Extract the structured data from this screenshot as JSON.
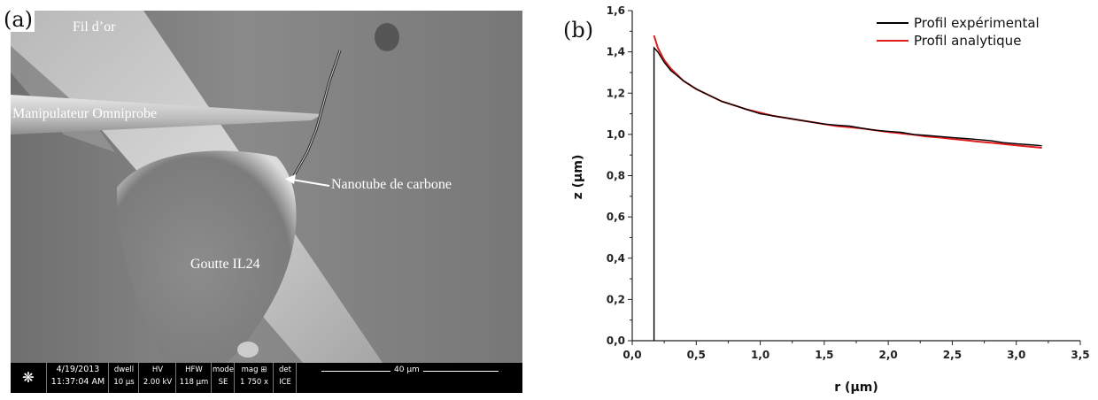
{
  "panel_a": {
    "letter": "(a)",
    "labels": {
      "gold_wire": "Fil d’or",
      "manipulator": "Manipulateur Omniprobe",
      "nanotube": "Nanotube de carbone",
      "drop": "Goutte IL24"
    },
    "info_bar": {
      "date": "4/19/2013",
      "time": "11:37:04 AM",
      "dwell_label": "dwell",
      "dwell_value": "10 µs",
      "hv_label": "HV",
      "hv_value": "2.00 kV",
      "hfw_label": "HFW",
      "hfw_value": "118 µm",
      "mode_label": "mode",
      "mode_value": "SE",
      "mag_label": "mag ⊞",
      "mag_value": "1 750 x",
      "det_label": "det",
      "det_value": "ICE",
      "scale_label": "40 µm"
    }
  },
  "panel_b": {
    "letter": "(b)"
  },
  "chart_data": {
    "type": "line",
    "xlabel": "r (µm)",
    "ylabel": "z (µm)",
    "xlim": [
      0.0,
      3.5
    ],
    "ylim": [
      0.0,
      1.6
    ],
    "x_ticks": [
      "0,0",
      "0,5",
      "1,0",
      "1,5",
      "2,0",
      "2,5",
      "3,0",
      "3,5"
    ],
    "y_ticks": [
      "0,0",
      "0,2",
      "0,4",
      "0,6",
      "0,8",
      "1,0",
      "1,2",
      "1,4",
      "1,6"
    ],
    "legend_position": "top-right",
    "grid": false,
    "series": [
      {
        "name": "Profil expérimental",
        "color": "#000000",
        "x": [
          0.17,
          0.17,
          0.17,
          0.2,
          0.25,
          0.3,
          0.4,
          0.5,
          0.6,
          0.7,
          0.8,
          0.9,
          1.0,
          1.1,
          1.2,
          1.3,
          1.4,
          1.5,
          1.6,
          1.7,
          1.8,
          1.9,
          2.0,
          2.1,
          2.2,
          2.3,
          2.4,
          2.5,
          2.6,
          2.7,
          2.8,
          2.9,
          3.0,
          3.1,
          3.2
        ],
        "y": [
          0.0,
          1.0,
          1.42,
          1.4,
          1.35,
          1.31,
          1.26,
          1.22,
          1.19,
          1.16,
          1.14,
          1.12,
          1.1,
          1.09,
          1.08,
          1.07,
          1.06,
          1.05,
          1.045,
          1.04,
          1.03,
          1.02,
          1.015,
          1.01,
          1.0,
          0.995,
          0.99,
          0.985,
          0.98,
          0.975,
          0.97,
          0.96,
          0.955,
          0.95,
          0.945
        ]
      },
      {
        "name": "Profil analytique",
        "color": "#e01c1c",
        "x": [
          0.17,
          0.2,
          0.25,
          0.3,
          0.4,
          0.5,
          0.6,
          0.7,
          0.8,
          0.9,
          1.0,
          1.1,
          1.2,
          1.3,
          1.4,
          1.5,
          1.6,
          1.7,
          1.8,
          1.9,
          2.0,
          2.1,
          2.2,
          2.3,
          2.4,
          2.5,
          2.6,
          2.7,
          2.8,
          2.9,
          3.0,
          3.1,
          3.2
        ],
        "y": [
          1.48,
          1.42,
          1.36,
          1.32,
          1.26,
          1.22,
          1.19,
          1.16,
          1.14,
          1.12,
          1.105,
          1.09,
          1.08,
          1.07,
          1.06,
          1.05,
          1.04,
          1.035,
          1.028,
          1.02,
          1.012,
          1.005,
          0.998,
          0.99,
          0.985,
          0.978,
          0.972,
          0.965,
          0.96,
          0.953,
          0.947,
          0.941,
          0.935
        ]
      }
    ]
  }
}
